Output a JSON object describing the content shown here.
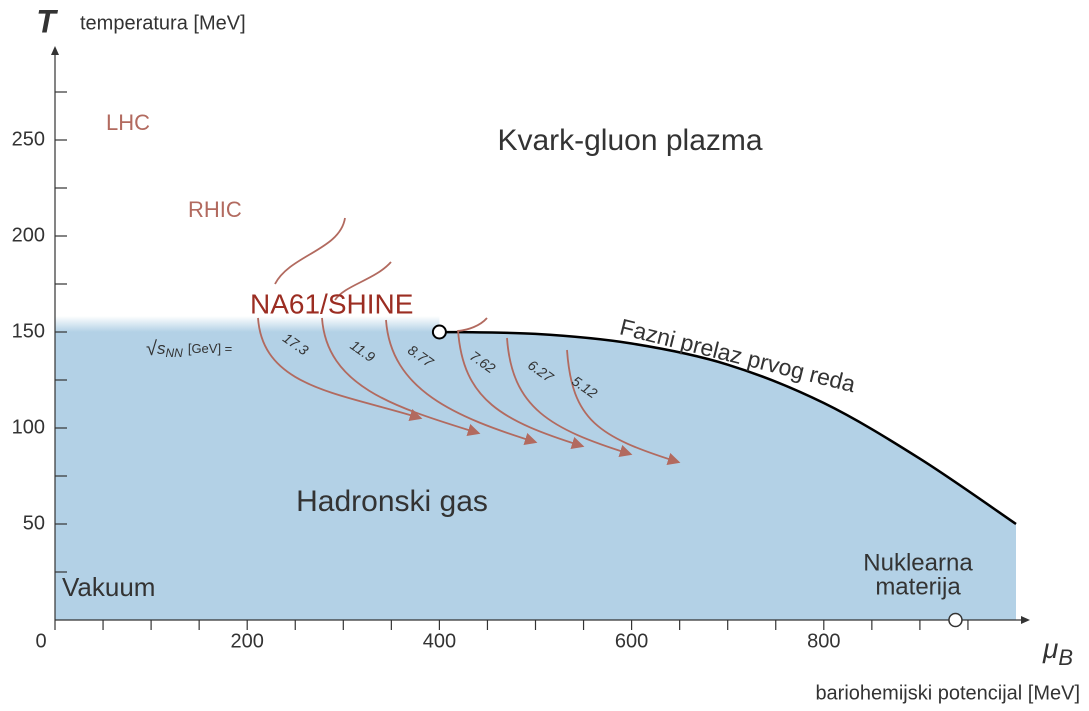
{
  "chart_data": {
    "type": "phase",
    "y_symbol": "T",
    "y_label": "temperatura [MeV]",
    "x_symbol": "μ",
    "x_symbol_sub": "B",
    "x_label": "bariohemijski potencijal [MeV]",
    "xlim": [
      0,
      1000
    ],
    "ylim": [
      0,
      300
    ],
    "xticks": [
      0,
      200,
      400,
      600,
      800
    ],
    "x_minor_ticks": [
      50,
      100,
      150,
      250,
      300,
      350,
      450,
      500,
      550,
      650,
      700,
      750,
      850,
      900,
      950
    ],
    "yticks": [
      50,
      100,
      150,
      200,
      250
    ],
    "y_minor_ticks": [
      25,
      75,
      125,
      175,
      225,
      275
    ],
    "boundary": {
      "name": "Fazni prelaz prvog reda",
      "color": "#000000",
      "mu": [
        400,
        500,
        600,
        700,
        800,
        900,
        1000
      ],
      "T": [
        150,
        149,
        144,
        133,
        113,
        84,
        50
      ]
    },
    "region_color": "#b3d1e6",
    "critical_point": {
      "mu": 400,
      "T": 150
    },
    "nuclear_matter": {
      "label": [
        "Nuklearna",
        "materija"
      ],
      "mu": 937,
      "T": 0
    },
    "regions": {
      "qgp": "Kvark-gluon plazma",
      "hadron": "Hadronski gas",
      "vacuum": "Vakuum"
    },
    "experiments": {
      "lhc": "LHC",
      "rhic": "RHIC",
      "na61": "NA61/SHINE"
    },
    "energy_label": {
      "root": "√",
      "symbol": "s",
      "sub": "NN",
      "unit": "[GeV] ="
    },
    "energies": [
      17.3,
      11.9,
      8.77,
      7.62,
      6.27,
      5.12
    ]
  }
}
